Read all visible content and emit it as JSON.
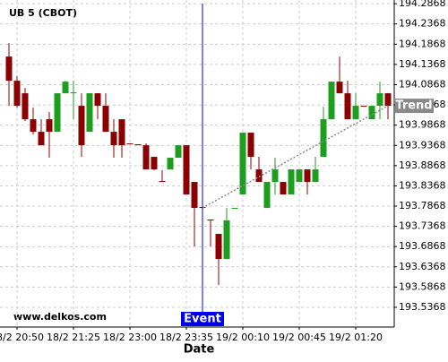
{
  "chart_data": {
    "type": "candlestick",
    "title": "UB 5 (CBOT)",
    "watermark": "www.delkos.com",
    "xlabel": "Date",
    "categories": [
      null,
      "18/2 20:50",
      null,
      null,
      null,
      null,
      null,
      null,
      "18/2 21:25",
      null,
      null,
      null,
      null,
      null,
      null,
      "18/2 23:00",
      null,
      null,
      null,
      null,
      null,
      null,
      "18/2 23:35",
      null,
      null,
      null,
      null,
      null,
      null,
      "19/2 00:10",
      null,
      null,
      null,
      null,
      null,
      null,
      "19/2 00:45",
      null,
      null,
      null,
      null,
      null,
      null,
      "19/2 01:20",
      null,
      null,
      null,
      null
    ],
    "open": [
      194.1563,
      194.0965,
      194.0656,
      194.0014,
      193.9704,
      194.0014,
      193.9704,
      194.0656,
      194.0656,
      194.0346,
      193.9704,
      194.0656,
      194.0346,
      193.9704,
      194.0014,
      193.9417,
      193.9395,
      193.9372,
      193.9085,
      193.8487,
      193.8775,
      193.9063,
      193.9372,
      193.8465,
      193.7846,
      193.7536,
      193.7182,
      193.6563,
      193.7802,
      193.8156,
      193.9682,
      193.8775,
      193.7824,
      193.8465,
      193.8465,
      193.8156,
      193.8465,
      193.8775,
      193.8465,
      193.9085,
      194.0014,
      194.0943,
      194.0656,
      194.0014,
      194.0346,
      194.0014,
      194.0346,
      194.0656
    ],
    "high": [
      194.1895,
      194.1076,
      194.0788,
      194.0302,
      194.0014,
      194.0191,
      194.0656,
      194.0965,
      194.0965,
      194.0656,
      194.0656,
      194.0656,
      194.0656,
      194.0014,
      194.0014,
      193.9417,
      193.9395,
      193.9417,
      193.9085,
      193.8753,
      193.9063,
      193.9372,
      193.9372,
      193.8465,
      193.7846,
      193.7536,
      193.7182,
      193.7824,
      193.7824,
      193.9682,
      193.9682,
      193.9085,
      193.8465,
      193.9063,
      193.8465,
      193.8775,
      193.8775,
      193.8775,
      193.9085,
      194.0324,
      194.0943,
      194.1563,
      194.0965,
      194.0656,
      194.0346,
      194.0346,
      194.0943,
      194.0656
    ],
    "low": [
      194.0346,
      194.0302,
      193.997,
      193.9638,
      193.9372,
      193.9063,
      193.9704,
      194.0656,
      194.0014,
      193.9085,
      193.9704,
      194.0014,
      193.9704,
      193.9063,
      193.9063,
      193.9395,
      193.9372,
      193.8775,
      193.8753,
      193.8465,
      193.8775,
      193.9063,
      193.8156,
      193.6872,
      193.7824,
      193.6872,
      193.5921,
      193.6563,
      193.7802,
      193.8156,
      193.8775,
      193.8465,
      193.7824,
      193.8156,
      193.8156,
      193.8156,
      193.8465,
      193.8156,
      193.8465,
      193.9085,
      194.0014,
      194.0656,
      194.0014,
      194.0014,
      194.0324,
      194.0014,
      194.0014,
      194.0014
    ],
    "close": [
      194.0965,
      194.0346,
      194.0014,
      193.9704,
      193.9372,
      193.9704,
      194.0656,
      194.0943,
      194.0678,
      193.9372,
      194.0656,
      194.0346,
      193.9704,
      193.9372,
      193.9372,
      193.9395,
      193.9372,
      193.8775,
      193.8775,
      193.8465,
      193.9063,
      193.9372,
      193.8156,
      193.7824,
      193.7824,
      193.7514,
      193.6563,
      193.7514,
      193.7824,
      193.9682,
      193.9085,
      193.8465,
      193.8465,
      193.8775,
      193.8156,
      193.8775,
      193.8775,
      193.8465,
      193.8775,
      194.0014,
      194.0943,
      194.0656,
      194.0014,
      194.0346,
      194.0324,
      194.0346,
      194.0656,
      194.0346
    ],
    "up_color": "#1e9e1e",
    "down_color": "#8b0000",
    "ylim": [
      193.488,
      194.296
    ],
    "yticks": [
      194.2868,
      194.2368,
      194.1868,
      194.1368,
      194.0868,
      194.0368,
      193.9868,
      193.9368,
      193.8868,
      193.8368,
      193.7868,
      193.7368,
      193.6868,
      193.6368,
      193.5868,
      193.5368
    ],
    "grid": true,
    "event": {
      "label": "Event",
      "index": 24,
      "color": "#0000ee"
    },
    "trend": {
      "label": "Trend",
      "x": [
        24,
        47
      ],
      "values": [
        193.7824,
        194.0346
      ],
      "color": "#888888"
    }
  }
}
